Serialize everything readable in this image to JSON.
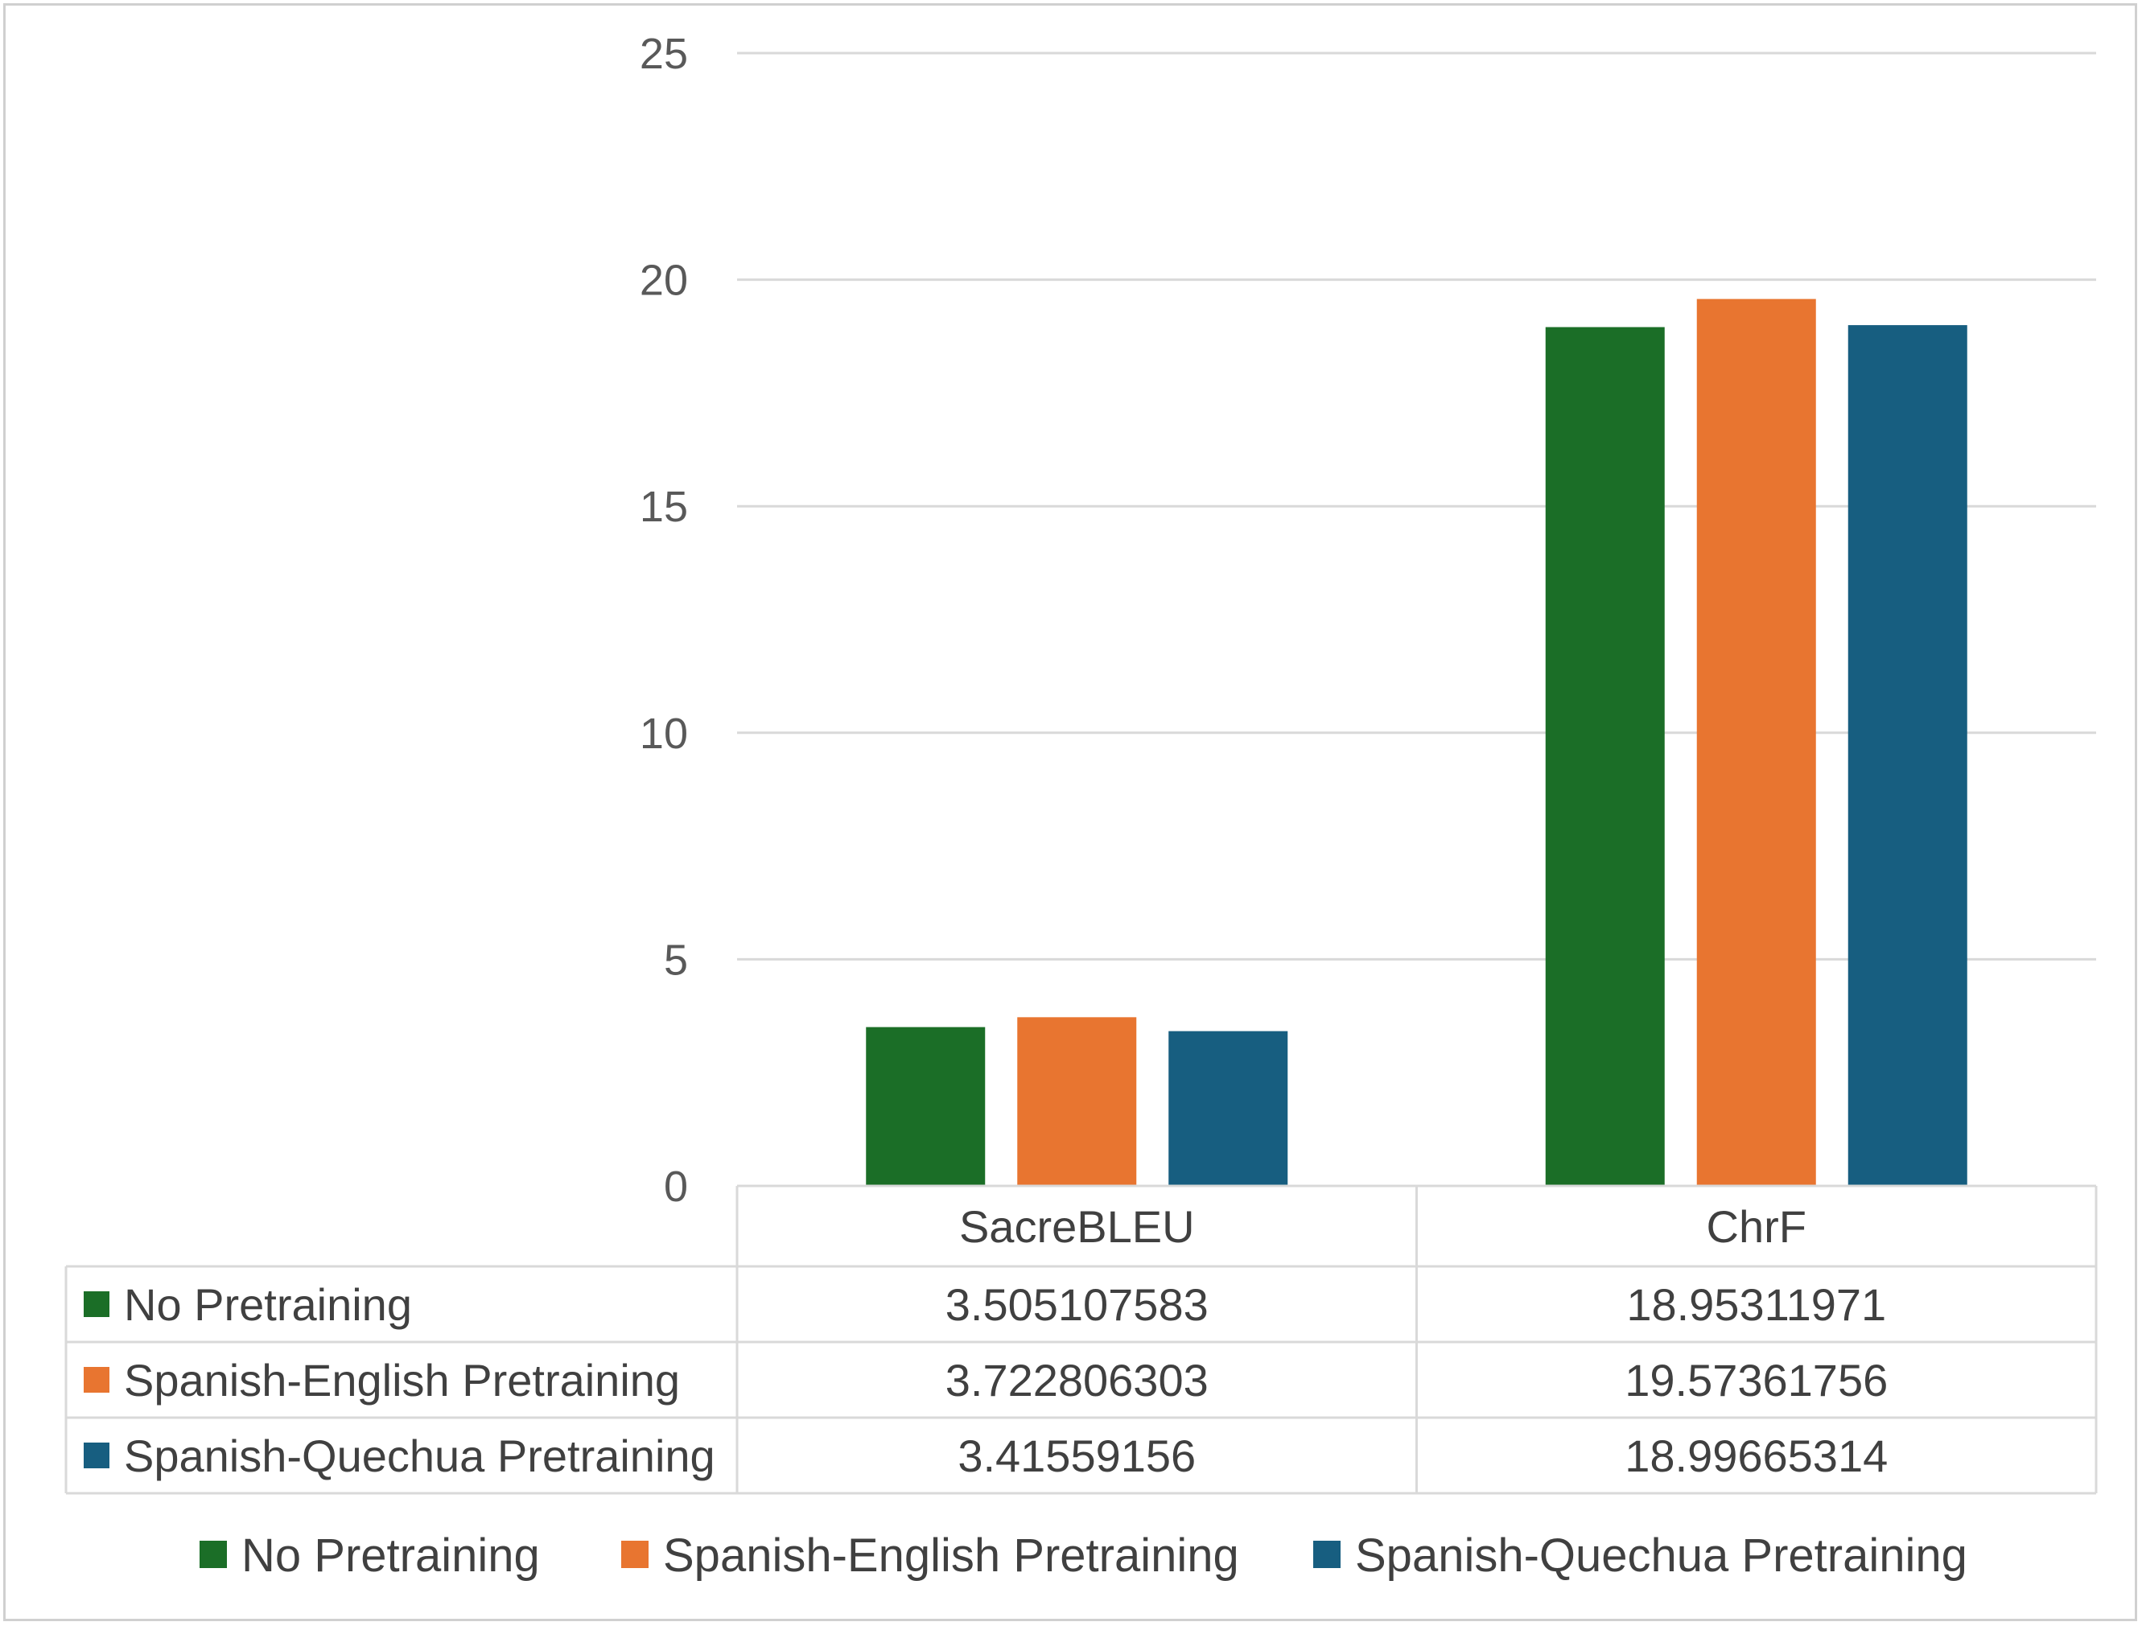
{
  "chart_data": {
    "type": "bar",
    "title": "",
    "xlabel": "",
    "ylabel": "",
    "ylim": [
      0,
      25
    ],
    "yticks": [
      0,
      5,
      10,
      15,
      20,
      25
    ],
    "grid": true,
    "legend_position": "bottom",
    "categories": [
      "SacreBLEU",
      "ChrF"
    ],
    "series": [
      {
        "name": "No Pretraining",
        "color": "#1b6e27",
        "values": [
          3.505107583,
          18.95311971
        ],
        "labels": [
          "3.505107583",
          "18.95311971"
        ]
      },
      {
        "name": "Spanish-English Pretraining",
        "color": "#e87530",
        "values": [
          3.722806303,
          19.57361756
        ],
        "labels": [
          "3.722806303",
          "19.57361756"
        ]
      },
      {
        "name": "Spanish-Quechua Pretraining",
        "color": "#175e80",
        "values": [
          3.41559156,
          18.99665314
        ],
        "labels": [
          "3.41559156",
          "18.99665314"
        ]
      }
    ],
    "data_table": true
  }
}
